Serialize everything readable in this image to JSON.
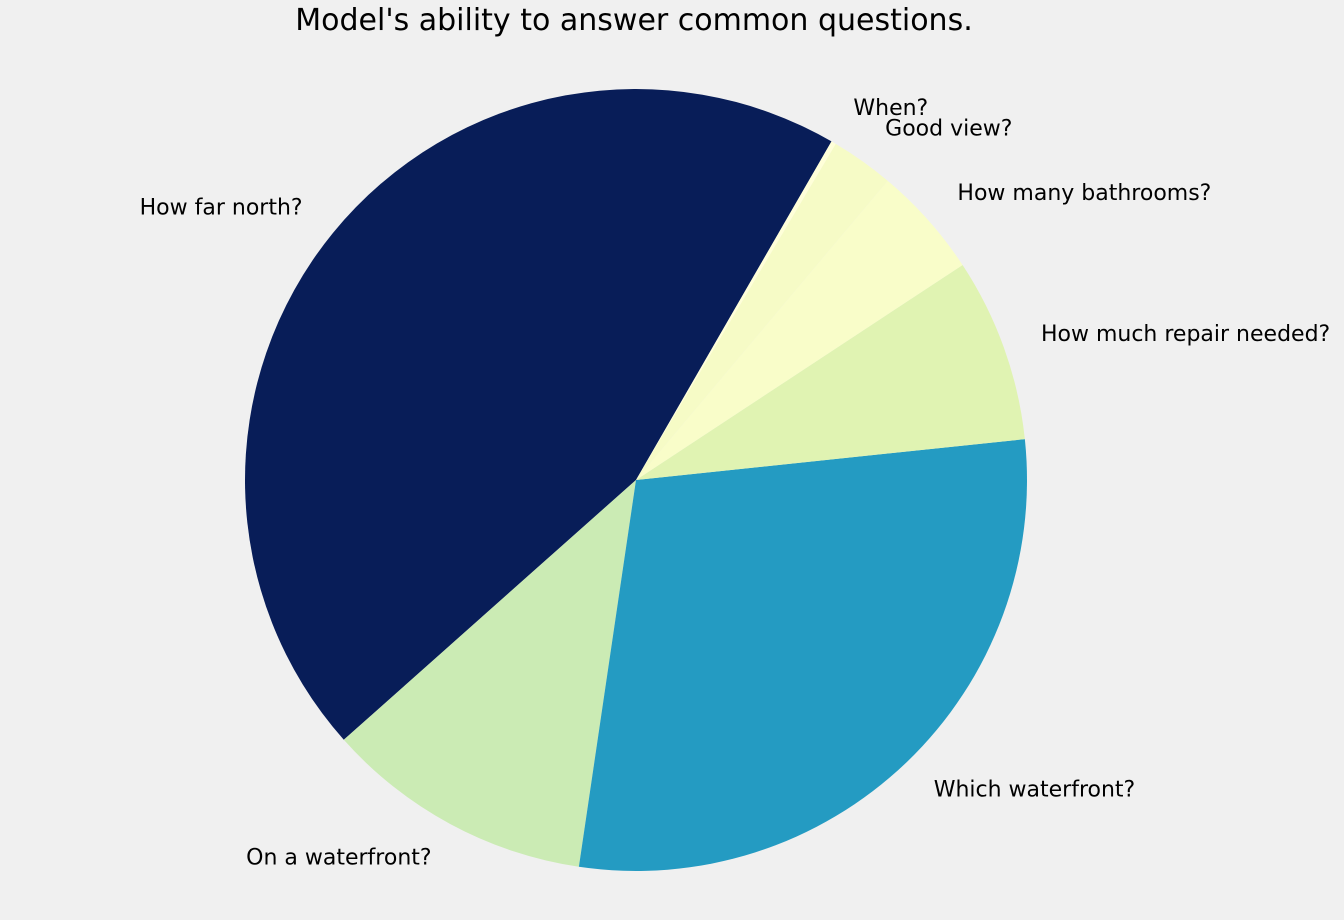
{
  "chart_data": {
    "type": "pie",
    "title": "Model's ability to answer common questions.",
    "start_angle_deg": 60,
    "direction": "counterclockwise",
    "slices": [
      {
        "label": "How far north?",
        "value": 44.9,
        "color": "#081d58"
      },
      {
        "label": "On a waterfront?",
        "value": 11.1,
        "color": "#cbebb4"
      },
      {
        "label": "Which waterfront?",
        "value": 29.0,
        "color": "#249bc2"
      },
      {
        "label": "How much repair needed?",
        "value": 7.6,
        "color": "#e0f3b2"
      },
      {
        "label": "How many bathrooms?",
        "value": 4.6,
        "color": "#f9fdc9"
      },
      {
        "label": "Good view?",
        "value": 2.6,
        "color": "#f6fbc6"
      },
      {
        "label": "When?",
        "value": 0.2,
        "color": "#ffffd9"
      }
    ]
  }
}
